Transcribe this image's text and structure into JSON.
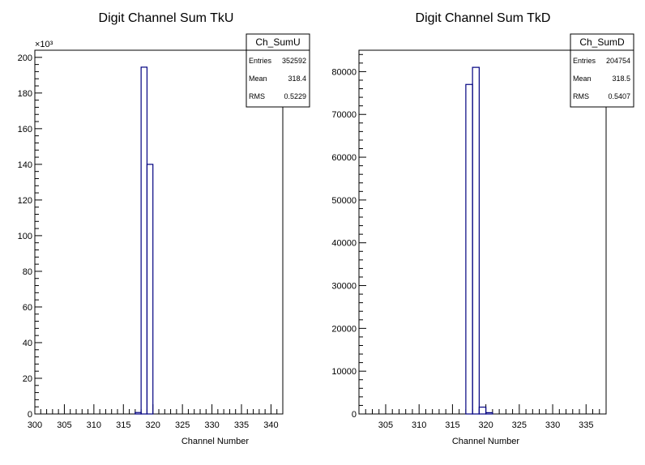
{
  "chart_data": [
    {
      "type": "histogram",
      "title": "Digit Channel Sum TkU",
      "xlabel": "Channel Number",
      "ylabel": "",
      "xlim": [
        300,
        342
      ],
      "ylim": [
        0,
        204
      ],
      "y_multiplier_label": "×10³",
      "xticks": [
        "300",
        "305",
        "310",
        "315",
        "320",
        "325",
        "330",
        "335",
        "340"
      ],
      "yticks": [
        "0",
        "20",
        "40",
        "60",
        "80",
        "100",
        "120",
        "140",
        "160",
        "180",
        "200"
      ],
      "bins": [
        {
          "x0": 317,
          "x1": 318,
          "value": 0.8
        },
        {
          "x0": 318,
          "x1": 319,
          "value": 194.5
        },
        {
          "x0": 319,
          "x1": 320,
          "value": 140
        }
      ],
      "stats": {
        "name": "Ch_SumU",
        "entries_label": "Entries",
        "entries": "352592",
        "mean_label": "Mean",
        "mean": "318.4",
        "rms_label": "RMS",
        "rms": "0.5229"
      },
      "line_color": "#000080",
      "grid": false
    },
    {
      "type": "histogram",
      "title": "Digit Channel Sum TkD",
      "xlabel": "Channel Number",
      "ylabel": "",
      "xlim": [
        301,
        338
      ],
      "ylim": [
        0,
        85000
      ],
      "xticks": [
        "305",
        "310",
        "315",
        "320",
        "325",
        "330",
        "335"
      ],
      "yticks": [
        "0",
        "10000",
        "20000",
        "30000",
        "40000",
        "50000",
        "60000",
        "70000",
        "80000"
      ],
      "bins": [
        {
          "x0": 317,
          "x1": 318,
          "value": 77000
        },
        {
          "x0": 318,
          "x1": 319,
          "value": 81000
        },
        {
          "x0": 319,
          "x1": 320,
          "value": 1600
        },
        {
          "x0": 320,
          "x1": 321,
          "value": 300
        }
      ],
      "stats": {
        "name": "Ch_SumD",
        "entries_label": "Entries",
        "entries": "204754",
        "mean_label": "Mean",
        "mean": "318.5",
        "rms_label": "RMS",
        "rms": "0.5407"
      },
      "line_color": "#000080",
      "grid": false
    }
  ]
}
